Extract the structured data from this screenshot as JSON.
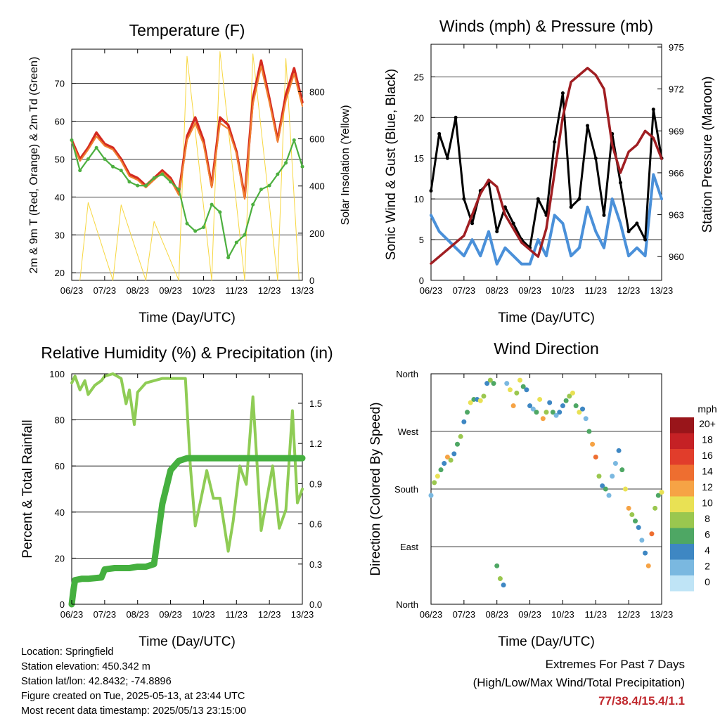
{
  "info": {
    "location": "Location: Springfield",
    "elevation": "Station elevation: 450.342 m",
    "latlon": "Station lat/lon: 42.8432; -74.8896",
    "created": "Figure created on Tue, 2025-05-13, at 23:44 UTC",
    "recent": "Most recent data timestamp: 2025/05/13 23:15:00"
  },
  "extremes": {
    "line1": "Extremes For Past 7 Days",
    "line2": "(High/Low/Max Wind/Total Precipitation)",
    "values": "77/38.4/15.4/1.1"
  },
  "chart_data": [
    {
      "type": "line",
      "title": "Temperature (F)",
      "xlabel": "Time (Day/UTC)",
      "ylabel": "2m & 9m T (Red, Orange) & 2m Td (Green)",
      "ylabel_right": "Solar Insolation (Yellow)",
      "x_ticks": [
        "06/23",
        "07/23",
        "08/23",
        "09/23",
        "10/23",
        "11/23",
        "12/23",
        "13/23"
      ],
      "ylim": [
        18,
        79
      ],
      "y_ticks": [
        20,
        30,
        40,
        50,
        60,
        70
      ],
      "ylim_right": [
        0,
        980
      ],
      "y_ticks_right": [
        0,
        200,
        400,
        600,
        800
      ],
      "grid": "horizontal",
      "series": [
        {
          "color": "#d42a20",
          "axis": "left",
          "x": [
            6.0,
            6.25,
            6.5,
            6.75,
            7.0,
            7.25,
            7.5,
            7.75,
            8.0,
            8.25,
            8.5,
            8.75,
            9.0,
            9.25,
            9.5,
            9.75,
            10.0,
            10.25,
            10.5,
            10.75,
            11.0,
            11.25,
            11.5,
            11.75,
            12.0,
            12.25,
            12.5,
            12.75,
            13.0
          ],
          "values": [
            55,
            50,
            53,
            57,
            54,
            53,
            50,
            46,
            45,
            43,
            45,
            47,
            45,
            41,
            56,
            61,
            55,
            43,
            61,
            59,
            52,
            40,
            66,
            76,
            66,
            55,
            67,
            74,
            65
          ]
        },
        {
          "color": "#f07e30",
          "axis": "left",
          "x": [
            6.0,
            6.25,
            6.5,
            6.75,
            7.0,
            7.25,
            7.5,
            7.75,
            8.0,
            8.25,
            8.5,
            8.75,
            9.0,
            9.25,
            9.5,
            9.75,
            10.0,
            10.25,
            10.5,
            10.75,
            11.0,
            11.25,
            11.5,
            11.75,
            12.0,
            12.25,
            12.5,
            12.75,
            13.0
          ],
          "values": [
            54.5,
            49.5,
            52.5,
            56,
            53.5,
            52.5,
            49.5,
            45.5,
            44.5,
            42.5,
            44.5,
            46.5,
            44.5,
            40.5,
            55,
            59.5,
            54,
            42.5,
            59.5,
            58,
            51.5,
            39.5,
            64.5,
            74.5,
            65,
            54.5,
            65.5,
            72.5,
            64
          ]
        },
        {
          "color": "#4caf3f",
          "axis": "left",
          "x": [
            6.0,
            6.25,
            6.5,
            6.75,
            7.0,
            7.25,
            7.5,
            7.75,
            8.0,
            8.25,
            8.5,
            8.75,
            9.0,
            9.25,
            9.5,
            9.75,
            10.0,
            10.25,
            10.5,
            10.75,
            11.0,
            11.25,
            11.5,
            11.75,
            12.0,
            12.25,
            12.5,
            12.75,
            13.0
          ],
          "values": [
            55,
            47,
            50,
            53,
            50,
            48,
            47,
            44,
            43,
            43,
            45,
            46,
            44,
            42,
            33,
            31,
            32,
            38,
            36,
            24,
            28,
            30,
            38,
            42,
            43,
            46,
            49,
            55,
            48
          ]
        },
        {
          "color": "#f7d740",
          "axis": "right",
          "x": [
            6.25,
            6.5,
            7.25,
            7.5,
            8.25,
            8.5,
            9.25,
            9.5,
            10.25,
            10.5,
            11.25,
            11.5,
            12.25,
            12.5,
            12.9
          ],
          "values": [
            0,
            330,
            0,
            320,
            0,
            250,
            0,
            950,
            0,
            970,
            0,
            960,
            0,
            940,
            0
          ]
        }
      ]
    },
    {
      "type": "line",
      "title": "Winds (mph) & Pressure (mb)",
      "xlabel": "Time (Day/UTC)",
      "ylabel": "Sonic Wind & Gust (Blue, Black)",
      "ylabel_right": "Station Pressure (Maroon)",
      "x_ticks": [
        "06/23",
        "07/23",
        "08/23",
        "09/23",
        "10/23",
        "11/23",
        "12/23",
        "13/23"
      ],
      "ylim": [
        0,
        29
      ],
      "y_ticks": [
        0,
        5,
        10,
        15,
        20,
        25
      ],
      "ylim_right": [
        958.3,
        975.2
      ],
      "y_ticks_right": [
        960,
        963,
        966,
        969,
        972,
        975
      ],
      "grid": "horizontal",
      "series": [
        {
          "color": "#4a90d9",
          "axis": "left",
          "x": [
            6.0,
            6.25,
            6.5,
            6.75,
            7.0,
            7.25,
            7.5,
            7.75,
            8.0,
            8.25,
            8.5,
            8.75,
            9.0,
            9.25,
            9.5,
            9.75,
            10.0,
            10.25,
            10.5,
            10.75,
            11.0,
            11.25,
            11.5,
            11.75,
            12.0,
            12.25,
            12.5,
            12.75,
            13.0
          ],
          "values": [
            8,
            6,
            5,
            4,
            3,
            5,
            3,
            6,
            2,
            4,
            3,
            2,
            2,
            5,
            3,
            8,
            7,
            3,
            4,
            9,
            6,
            4,
            10,
            7,
            3,
            4,
            3,
            13,
            10
          ]
        },
        {
          "color": "#000000",
          "axis": "left",
          "x": [
            6.0,
            6.25,
            6.5,
            6.75,
            7.0,
            7.25,
            7.5,
            7.75,
            8.0,
            8.25,
            8.5,
            8.75,
            9.0,
            9.25,
            9.5,
            9.75,
            10.0,
            10.25,
            10.5,
            10.75,
            11.0,
            11.25,
            11.5,
            11.75,
            12.0,
            12.25,
            12.5,
            12.75,
            13.0
          ],
          "values": [
            11,
            18,
            15,
            20,
            10,
            7,
            11,
            12,
            6,
            9,
            7,
            5,
            4,
            10,
            8,
            17,
            23,
            9,
            10,
            19,
            15,
            8,
            18,
            12,
            6,
            7,
            5,
            21,
            15
          ]
        },
        {
          "color": "#a01e22",
          "axis": "right",
          "x": [
            6.0,
            6.25,
            6.5,
            6.75,
            7.0,
            7.25,
            7.5,
            7.75,
            8.0,
            8.25,
            8.5,
            8.75,
            9.0,
            9.25,
            9.5,
            9.75,
            10.0,
            10.25,
            10.5,
            10.75,
            11.0,
            11.25,
            11.5,
            11.75,
            12.0,
            12.25,
            12.5,
            12.75,
            13.0
          ],
          "values": [
            959.5,
            960,
            960.5,
            961,
            961.5,
            963,
            964.5,
            965.5,
            965,
            963,
            962,
            961,
            960.5,
            960,
            962,
            966,
            970,
            972.5,
            973,
            973.5,
            973,
            972,
            968,
            966,
            967.5,
            968,
            969,
            968.5,
            967
          ]
        }
      ]
    },
    {
      "type": "line",
      "title": "Relative Humidity (%) & Precipitation (in)",
      "xlabel": "Time (Day/UTC)",
      "ylabel": "Percent & Total Rainfall",
      "x_ticks": [
        "06/23",
        "07/23",
        "08/23",
        "09/23",
        "10/23",
        "11/23",
        "12/23",
        "13/23"
      ],
      "ylim": [
        0,
        100
      ],
      "y_ticks": [
        0,
        20,
        40,
        60,
        80,
        100
      ],
      "ylim_right": [
        0,
        1.72
      ],
      "y_ticks_right": [
        "0.0",
        "0.3",
        "0.6",
        "0.9",
        "1.2",
        "1.5"
      ],
      "grid": "horizontal",
      "series": [
        {
          "color": "#8fcc55",
          "axis": "left",
          "x": [
            6.0,
            6.1,
            6.25,
            6.4,
            6.5,
            6.7,
            6.9,
            7.0,
            7.25,
            7.5,
            7.65,
            7.75,
            7.9,
            8.0,
            8.25,
            8.5,
            8.75,
            9.0,
            9.25,
            9.45,
            9.6,
            9.75,
            9.9,
            10.1,
            10.3,
            10.5,
            10.75,
            10.9,
            11.1,
            11.3,
            11.5,
            11.75,
            11.9,
            12.1,
            12.3,
            12.5,
            12.7,
            12.85,
            13.0
          ],
          "values": [
            96,
            99,
            93,
            97,
            91,
            95,
            97,
            99,
            100,
            98,
            87,
            93,
            78,
            92,
            96,
            97,
            98,
            98,
            98,
            98,
            60,
            34,
            44,
            58,
            46,
            46,
            23,
            36,
            60,
            52,
            90,
            32,
            44,
            60,
            33,
            41,
            84,
            44,
            50
          ]
        },
        {
          "color": "#45b03f",
          "axis": "right",
          "x": [
            6.0,
            6.05,
            6.1,
            6.3,
            6.5,
            6.9,
            7.0,
            7.3,
            7.5,
            7.75,
            8.0,
            8.25,
            8.5,
            8.75,
            9.0,
            9.25,
            9.5,
            9.75,
            10.0,
            10.5,
            11.0,
            11.5,
            12.0,
            12.5,
            13.0
          ],
          "values": [
            0,
            0.1,
            0.18,
            0.19,
            0.19,
            0.2,
            0.26,
            0.27,
            0.27,
            0.27,
            0.28,
            0.28,
            0.3,
            0.75,
            1.0,
            1.07,
            1.09,
            1.09,
            1.09,
            1.09,
            1.09,
            1.09,
            1.09,
            1.09,
            1.09
          ]
        }
      ]
    },
    {
      "type": "scatter",
      "title": "Wind Direction",
      "xlabel": "Time (Day/UTC)",
      "ylabel": "Direction (Colored By Speed)",
      "x_ticks": [
        "06/23",
        "07/23",
        "08/23",
        "09/23",
        "10/23",
        "11/23",
        "12/23",
        "13/23"
      ],
      "ylim": [
        0,
        360
      ],
      "y_ticks": [
        "North",
        "East",
        "South",
        "West",
        "North"
      ],
      "grid": "horizontal",
      "legend": {
        "title": "mph",
        "placement": "right",
        "labels": [
          "20+",
          "18",
          "16",
          "14",
          "12",
          "10",
          "8",
          "6",
          "4",
          "2",
          "0"
        ],
        "colors": [
          "#99151a",
          "#c52125",
          "#e13d2b",
          "#ee6e30",
          "#f6a345",
          "#e9e154",
          "#9ac74f",
          "#4ea764",
          "#3e87c3",
          "#7ab8e0",
          "#bfe4f6"
        ]
      },
      "points_x": [
        6.0,
        6.1,
        6.2,
        6.3,
        6.4,
        6.5,
        6.6,
        6.7,
        6.8,
        6.9,
        7.0,
        7.1,
        7.2,
        7.3,
        7.4,
        7.5,
        7.6,
        7.7,
        7.8,
        7.9,
        8.0,
        8.1,
        8.2,
        8.3,
        8.4,
        8.5,
        8.6,
        8.7,
        8.8,
        8.9,
        9.0,
        9.1,
        9.2,
        9.3,
        9.4,
        9.5,
        9.6,
        9.7,
        9.8,
        9.9,
        10.0,
        10.1,
        10.2,
        10.3,
        10.4,
        10.5,
        10.6,
        10.7,
        10.8,
        10.9,
        11.0,
        11.1,
        11.2,
        11.3,
        11.4,
        11.5,
        11.6,
        11.7,
        11.8,
        11.9,
        12.0,
        12.1,
        12.2,
        12.3,
        12.4,
        12.5,
        12.6,
        12.7,
        12.8,
        12.9,
        13.0
      ],
      "points_dir": [
        170,
        190,
        200,
        210,
        220,
        230,
        225,
        235,
        250,
        262,
        285,
        300,
        315,
        320,
        320,
        318,
        325,
        345,
        350,
        345,
        60,
        40,
        30,
        345,
        335,
        310,
        330,
        350,
        340,
        335,
        310,
        305,
        300,
        320,
        290,
        300,
        315,
        300,
        295,
        300,
        310,
        318,
        325,
        330,
        310,
        300,
        305,
        290,
        270,
        250,
        230,
        200,
        185,
        180,
        170,
        200,
        220,
        240,
        210,
        180,
        150,
        140,
        130,
        120,
        100,
        80,
        60,
        110,
        150,
        170,
        175
      ],
      "points_speed": [
        2,
        8,
        10,
        6,
        4,
        12,
        8,
        3,
        5,
        7,
        4,
        6,
        9,
        5,
        3,
        10,
        7,
        4,
        8,
        6,
        5,
        7,
        3,
        2,
        9,
        11,
        8,
        10,
        6,
        3,
        4,
        2,
        5,
        9,
        12,
        8,
        3,
        6,
        2,
        4,
        3,
        5,
        7,
        9,
        6,
        10,
        4,
        2,
        5,
        12,
        14,
        8,
        3,
        6,
        2,
        1,
        2,
        4,
        6,
        10,
        12,
        8,
        5,
        3,
        2,
        4,
        12,
        14,
        8,
        6,
        10
      ]
    }
  ]
}
